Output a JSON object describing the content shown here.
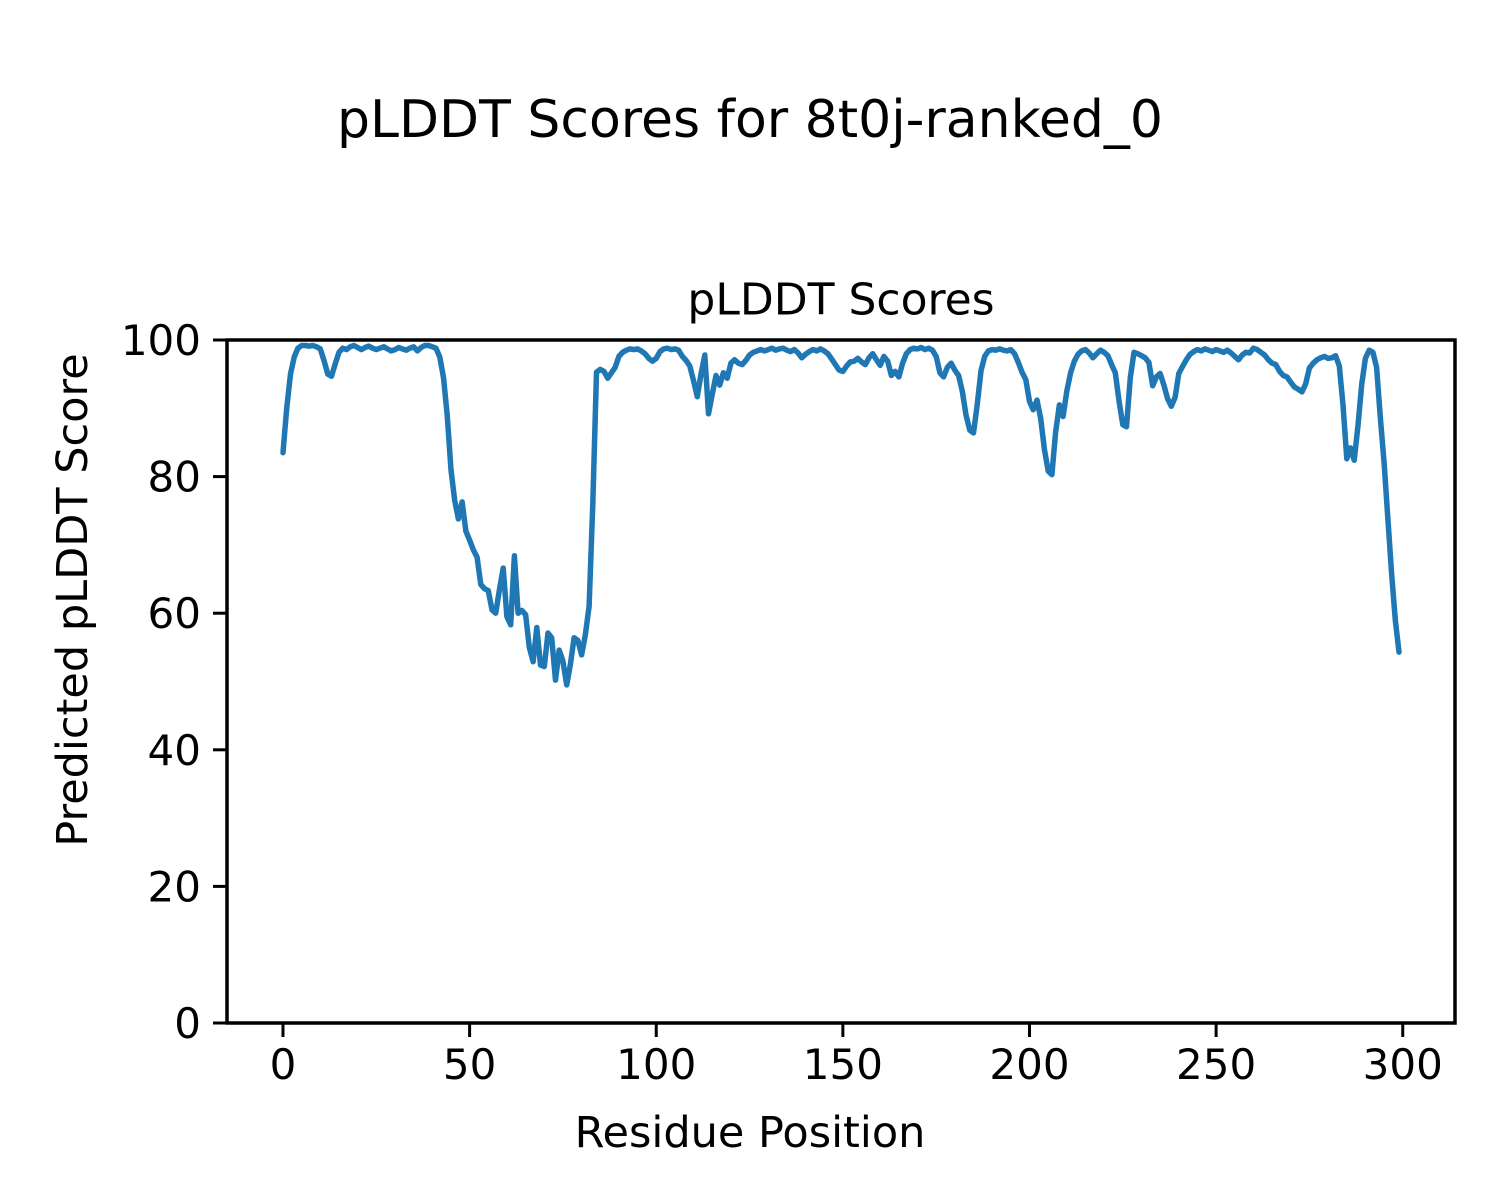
{
  "figure_title": "pLDDT Scores for 8t0j-ranked_0",
  "chart_data": {
    "type": "line",
    "title": "pLDDT Scores",
    "xlabel": "Residue Position",
    "ylabel": "Predicted pLDDT Score",
    "x_start": 0,
    "x_step": 1,
    "xlim": [
      -15,
      314
    ],
    "ylim": [
      0,
      100
    ],
    "xticks": [
      0,
      50,
      100,
      150,
      200,
      250,
      300
    ],
    "yticks": [
      0,
      20,
      40,
      60,
      80,
      100
    ],
    "grid": false,
    "legend_position": "none",
    "line_color": "#1f77b4",
    "axis_color": "#000000",
    "background": "#ffffff",
    "values": [
      83.5,
      90.0,
      95.0,
      97.5,
      98.8,
      99.2,
      99.2,
      99.1,
      99.2,
      99.0,
      98.7,
      97.0,
      95.0,
      94.7,
      96.5,
      98.2,
      98.8,
      98.6,
      99.0,
      99.2,
      98.9,
      98.6,
      98.9,
      99.1,
      98.8,
      98.6,
      98.8,
      99.0,
      98.7,
      98.4,
      98.6,
      98.9,
      98.7,
      98.5,
      98.8,
      99.0,
      98.4,
      98.9,
      99.2,
      99.2,
      99.0,
      98.8,
      97.5,
      94.5,
      89.0,
      81.0,
      76.5,
      73.8,
      76.3,
      72.0,
      70.7,
      69.3,
      68.2,
      64.2,
      63.6,
      63.3,
      60.5,
      60.0,
      63.5,
      66.6,
      59.5,
      58.3,
      68.4,
      60.0,
      60.4,
      59.8,
      55.0,
      52.9,
      57.9,
      52.4,
      52.2,
      57.1,
      56.4,
      50.2,
      54.6,
      53.0,
      49.5,
      52.5,
      56.4,
      56.0,
      53.9,
      56.8,
      61.0,
      76.0,
      95.3,
      95.7,
      95.4,
      94.4,
      95.2,
      96.0,
      97.6,
      98.2,
      98.5,
      98.7,
      98.6,
      98.7,
      98.4,
      98.0,
      97.3,
      96.9,
      97.3,
      98.3,
      98.7,
      98.8,
      98.6,
      98.7,
      98.5,
      97.6,
      97.0,
      96.2,
      94.0,
      91.7,
      95.0,
      97.8,
      89.2,
      92.0,
      94.8,
      93.4,
      95.2,
      94.4,
      96.6,
      97.1,
      96.6,
      96.4,
      97.0,
      97.8,
      98.2,
      98.4,
      98.6,
      98.4,
      98.6,
      98.8,
      98.5,
      98.7,
      98.8,
      98.5,
      98.3,
      98.6,
      98.1,
      97.4,
      97.9,
      98.3,
      98.6,
      98.4,
      98.7,
      98.4,
      98.0,
      97.2,
      96.4,
      95.6,
      95.4,
      96.2,
      96.8,
      96.9,
      97.3,
      96.8,
      96.4,
      97.4,
      98.0,
      97.1,
      96.3,
      97.6,
      96.9,
      94.8,
      95.4,
      94.6,
      96.6,
      98.0,
      98.6,
      98.8,
      98.7,
      98.9,
      98.6,
      98.8,
      98.5,
      97.6,
      95.2,
      94.6,
      96.0,
      96.6,
      95.6,
      94.8,
      92.5,
      89.0,
      86.8,
      86.4,
      90.5,
      95.5,
      97.6,
      98.4,
      98.6,
      98.5,
      98.7,
      98.5,
      98.4,
      98.6,
      98.0,
      96.7,
      95.3,
      94.2,
      91.0,
      89.8,
      91.2,
      88.5,
      84.0,
      80.8,
      80.3,
      86.5,
      90.5,
      88.8,
      92.5,
      95.2,
      96.9,
      97.9,
      98.4,
      98.6,
      98.1,
      97.4,
      98.0,
      98.5,
      98.2,
      97.7,
      96.4,
      95.2,
      91.0,
      87.6,
      87.3,
      94.5,
      98.2,
      98.0,
      97.7,
      97.4,
      96.7,
      93.3,
      94.6,
      95.1,
      93.4,
      91.4,
      90.3,
      91.6,
      95.1,
      96.1,
      97.1,
      97.9,
      98.3,
      98.6,
      98.4,
      98.7,
      98.5,
      98.3,
      98.6,
      98.4,
      98.2,
      98.5,
      98.1,
      97.6,
      97.1,
      97.8,
      98.2,
      98.1,
      98.8,
      98.6,
      98.2,
      97.8,
      97.1,
      96.6,
      96.4,
      95.4,
      94.8,
      94.6,
      93.8,
      93.1,
      92.8,
      92.4,
      93.6,
      95.9,
      96.6,
      97.1,
      97.4,
      97.6,
      97.3,
      97.4,
      97.7,
      96.2,
      90.5,
      82.6,
      84.2,
      82.4,
      87.5,
      93.5,
      97.3,
      98.5,
      98.2,
      96.0,
      88.7,
      82.0,
      74.0,
      66.0,
      59.0,
      54.3
    ]
  }
}
